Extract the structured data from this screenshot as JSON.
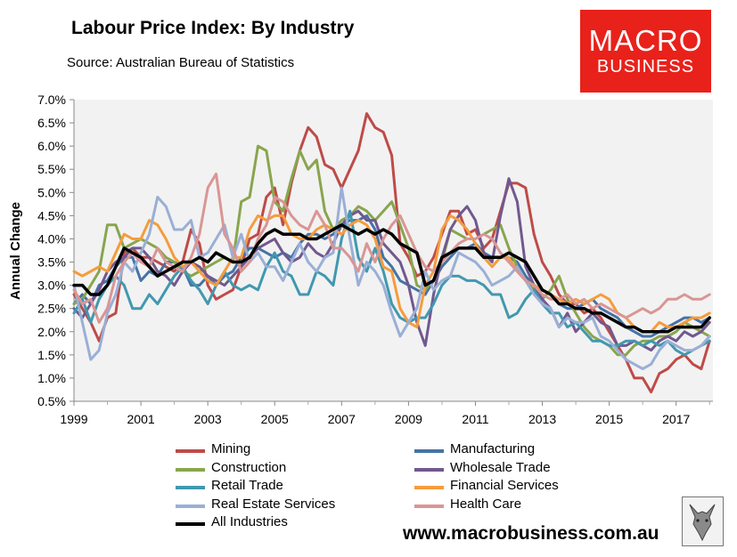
{
  "header": {
    "title": "Labour Price Index: By Industry",
    "source": "Source: Australian Bureau of Statistics"
  },
  "brand": {
    "line1": "MACRO",
    "line2": "BUSINESS",
    "color": "#e8211b"
  },
  "footer": {
    "website": "www.macrobusiness.com.au"
  },
  "chart_data": {
    "type": "line",
    "title": "Labour Price Index: By Industry",
    "xlabel": "",
    "ylabel": "Annual Change",
    "xlim": [
      1999,
      2018.1
    ],
    "ylim": [
      0.5,
      7.0
    ],
    "x_ticks": [
      "1999",
      "2001",
      "2003",
      "2005",
      "2007",
      "2009",
      "2011",
      "2013",
      "2015",
      "2017"
    ],
    "y_ticks": [
      "0.5%",
      "1.0%",
      "1.5%",
      "2.0%",
      "2.5%",
      "3.0%",
      "3.5%",
      "4.0%",
      "4.5%",
      "5.0%",
      "5.5%",
      "6.0%",
      "6.5%",
      "7.0%"
    ],
    "grid": "none",
    "plot_background": "#f2f2f2",
    "legend_position": "bottom",
    "x": [
      1999.0,
      1999.25,
      1999.5,
      1999.75,
      2000.0,
      2000.25,
      2000.5,
      2000.75,
      2001.0,
      2001.25,
      2001.5,
      2001.75,
      2002.0,
      2002.25,
      2002.5,
      2002.75,
      2003.0,
      2003.25,
      2003.5,
      2003.75,
      2004.0,
      2004.25,
      2004.5,
      2004.75,
      2005.0,
      2005.25,
      2005.5,
      2005.75,
      2006.0,
      2006.25,
      2006.5,
      2006.75,
      2007.0,
      2007.25,
      2007.5,
      2007.75,
      2008.0,
      2008.25,
      2008.5,
      2008.75,
      2009.0,
      2009.25,
      2009.5,
      2009.75,
      2010.0,
      2010.25,
      2010.5,
      2010.75,
      2011.0,
      2011.25,
      2011.5,
      2011.75,
      2012.0,
      2012.25,
      2012.5,
      2012.75,
      2013.0,
      2013.25,
      2013.5,
      2013.75,
      2014.0,
      2014.25,
      2014.5,
      2014.75,
      2015.0,
      2015.25,
      2015.5,
      2015.75,
      2016.0,
      2016.25,
      2016.5,
      2016.75,
      2017.0,
      2017.25,
      2017.5,
      2017.75,
      2018.0
    ],
    "series": [
      {
        "name": "Mining",
        "color": "#be4b48",
        "values": [
          2.8,
          2.5,
          2.2,
          1.8,
          2.3,
          2.4,
          3.7,
          3.8,
          3.6,
          3.6,
          3.5,
          3.4,
          3.3,
          3.5,
          4.2,
          3.9,
          3.0,
          2.7,
          2.8,
          2.9,
          3.4,
          4.0,
          4.1,
          4.9,
          5.1,
          4.3,
          5.2,
          5.9,
          6.4,
          6.2,
          5.6,
          5.5,
          5.1,
          5.5,
          5.9,
          6.7,
          6.4,
          6.3,
          5.8,
          3.9,
          3.6,
          3.2,
          3.3,
          3.6,
          4.1,
          4.6,
          4.6,
          4.1,
          4.2,
          3.8,
          4.0,
          4.6,
          5.2,
          5.2,
          5.1,
          4.1,
          3.5,
          3.2,
          2.8,
          2.6,
          2.6,
          2.4,
          2.5,
          2.3,
          2.0,
          1.7,
          1.4,
          1.0,
          1.0,
          0.7,
          1.1,
          1.2,
          1.4,
          1.5,
          1.3,
          1.2,
          1.8
        ]
      },
      {
        "name": "Manufacturing",
        "color": "#4573a7",
        "values": [
          2.6,
          2.8,
          2.6,
          3.0,
          3.1,
          3.4,
          3.6,
          3.6,
          3.1,
          3.3,
          3.2,
          3.5,
          3.5,
          3.4,
          3.0,
          3.0,
          3.2,
          3.0,
          3.2,
          3.3,
          3.6,
          3.8,
          3.8,
          3.7,
          3.6,
          3.7,
          3.6,
          3.9,
          4.1,
          4.1,
          4.0,
          4.1,
          4.3,
          4.4,
          4.4,
          4.5,
          4.2,
          3.6,
          3.4,
          3.1,
          3.0,
          2.9,
          2.8,
          3.1,
          3.4,
          3.6,
          3.8,
          3.8,
          3.9,
          3.7,
          3.6,
          3.6,
          3.6,
          3.5,
          3.2,
          3.0,
          2.9,
          2.8,
          2.6,
          2.5,
          2.5,
          2.6,
          2.7,
          2.5,
          2.4,
          2.3,
          2.1,
          2.0,
          1.9,
          1.9,
          2.0,
          2.1,
          2.2,
          2.3,
          2.3,
          2.2,
          2.3
        ]
      },
      {
        "name": "Construction",
        "color": "#89a54e",
        "values": [
          2.6,
          2.7,
          3.0,
          3.3,
          4.3,
          4.3,
          3.8,
          3.9,
          4.0,
          3.9,
          3.8,
          3.6,
          3.5,
          3.3,
          3.2,
          3.3,
          3.4,
          3.5,
          3.6,
          3.5,
          4.8,
          4.9,
          6.0,
          5.9,
          4.8,
          4.6,
          5.3,
          5.9,
          5.5,
          5.7,
          4.6,
          4.2,
          4.4,
          4.5,
          4.7,
          4.6,
          4.4,
          4.6,
          4.8,
          4.3,
          3.8,
          3.0,
          2.9,
          3.1,
          3.5,
          4.2,
          4.1,
          4.0,
          4.0,
          4.1,
          4.2,
          4.3,
          3.8,
          3.4,
          3.1,
          2.9,
          2.7,
          2.9,
          3.2,
          2.7,
          2.4,
          2.1,
          1.9,
          1.8,
          1.7,
          1.5,
          1.5,
          1.7,
          1.8,
          1.8,
          1.9,
          1.9,
          2.0,
          2.2,
          2.1,
          2.0,
          1.9
        ]
      },
      {
        "name": "Wholesale Trade",
        "color": "#71588f",
        "values": [
          2.5,
          2.3,
          2.6,
          2.9,
          3.3,
          3.5,
          3.6,
          3.8,
          3.8,
          3.6,
          3.3,
          3.2,
          3.0,
          3.3,
          3.5,
          3.4,
          3.2,
          3.1,
          3.0,
          3.2,
          3.4,
          3.6,
          3.8,
          3.9,
          4.0,
          3.7,
          3.5,
          3.6,
          3.9,
          3.7,
          3.6,
          3.9,
          4.3,
          4.5,
          4.6,
          4.4,
          4.4,
          3.9,
          3.7,
          3.5,
          3.0,
          2.2,
          1.7,
          2.8,
          3.6,
          4.2,
          4.5,
          4.7,
          4.4,
          3.7,
          3.5,
          4.5,
          5.3,
          4.8,
          3.4,
          3.0,
          2.7,
          2.5,
          2.1,
          2.4,
          2.0,
          2.2,
          2.4,
          2.2,
          2.1,
          1.7,
          1.7,
          1.8,
          1.7,
          1.6,
          1.8,
          1.9,
          1.8,
          2.0,
          1.9,
          2.0,
          2.2
        ]
      },
      {
        "name": "Retail Trade",
        "color": "#4198af",
        "values": [
          2.4,
          2.7,
          2.2,
          2.7,
          3.0,
          3.2,
          3.0,
          2.5,
          2.5,
          2.8,
          2.6,
          2.9,
          3.2,
          3.4,
          3.1,
          2.9,
          2.6,
          3.0,
          3.3,
          3.0,
          2.9,
          3.0,
          2.9,
          3.4,
          3.7,
          3.3,
          3.2,
          2.8,
          2.8,
          3.3,
          3.2,
          3.0,
          4.0,
          4.6,
          3.6,
          3.3,
          3.8,
          3.3,
          2.6,
          2.3,
          2.2,
          2.3,
          2.3,
          2.6,
          3.0,
          3.2,
          3.2,
          3.1,
          3.1,
          3.0,
          2.8,
          2.8,
          2.3,
          2.4,
          2.7,
          2.9,
          2.6,
          2.4,
          2.4,
          2.1,
          2.2,
          2.0,
          1.8,
          1.8,
          1.7,
          1.7,
          1.8,
          1.8,
          1.7,
          1.8,
          1.7,
          1.8,
          1.6,
          1.5,
          1.6,
          1.7,
          1.8
        ]
      },
      {
        "name": "Financial Services",
        "color": "#f59c3c",
        "values": [
          3.3,
          3.2,
          3.3,
          3.4,
          3.3,
          3.7,
          4.1,
          4.0,
          4.0,
          4.4,
          4.3,
          4.0,
          3.6,
          3.4,
          3.5,
          3.3,
          3.1,
          3.0,
          3.3,
          3.6,
          3.6,
          4.2,
          4.5,
          4.4,
          4.5,
          4.5,
          4.1,
          4.0,
          4.0,
          4.2,
          4.3,
          4.2,
          4.1,
          4.3,
          4.4,
          4.3,
          4.0,
          3.4,
          3.3,
          2.5,
          2.2,
          2.1,
          3.0,
          3.3,
          4.2,
          4.5,
          4.4,
          4.2,
          3.9,
          3.6,
          3.4,
          3.6,
          3.6,
          3.3,
          3.1,
          3.0,
          2.9,
          2.8,
          2.7,
          2.6,
          2.7,
          2.6,
          2.7,
          2.8,
          2.7,
          2.4,
          2.3,
          2.1,
          2.0,
          2.0,
          2.2,
          2.1,
          2.1,
          2.2,
          2.3,
          2.3,
          2.4
        ]
      },
      {
        "name": "Real Estate Services",
        "color": "#9aafd6",
        "values": [
          3.0,
          2.2,
          1.4,
          1.6,
          2.4,
          2.8,
          3.5,
          3.3,
          3.7,
          4.1,
          4.9,
          4.7,
          4.2,
          4.2,
          4.4,
          3.6,
          3.7,
          4.0,
          4.3,
          3.6,
          4.1,
          3.5,
          3.7,
          3.4,
          3.4,
          3.1,
          3.5,
          3.9,
          3.5,
          3.3,
          3.6,
          3.7,
          5.1,
          4.0,
          3.0,
          3.5,
          3.3,
          3.0,
          2.4,
          1.9,
          2.2,
          2.5,
          3.3,
          2.9,
          3.1,
          3.2,
          3.7,
          3.6,
          3.5,
          3.3,
          3.0,
          3.1,
          3.2,
          3.4,
          3.1,
          2.8,
          2.6,
          2.5,
          2.1,
          2.3,
          2.2,
          2.2,
          2.3,
          1.9,
          1.8,
          1.6,
          1.4,
          1.3,
          1.2,
          1.3,
          1.6,
          1.8,
          1.7,
          1.6,
          1.6,
          1.7,
          1.9
        ]
      },
      {
        "name": "Health Care",
        "color": "#d99694",
        "values": [
          2.9,
          2.6,
          2.7,
          2.2,
          2.5,
          3.2,
          3.5,
          3.7,
          3.5,
          3.4,
          3.8,
          3.5,
          3.4,
          3.3,
          3.6,
          4.1,
          5.1,
          5.4,
          4.1,
          3.8,
          3.3,
          3.5,
          4.0,
          4.3,
          4.9,
          4.8,
          4.5,
          4.3,
          4.2,
          4.6,
          4.3,
          3.8,
          3.8,
          3.6,
          3.3,
          3.9,
          3.5,
          4.0,
          4.3,
          4.5,
          4.1,
          3.7,
          3.4,
          3.3,
          3.5,
          3.7,
          3.9,
          4.0,
          4.0,
          4.1,
          4.0,
          3.7,
          3.5,
          3.3,
          3.1,
          3.0,
          2.8,
          2.7,
          2.7,
          2.8,
          2.6,
          2.7,
          2.5,
          2.6,
          2.5,
          2.4,
          2.3,
          2.4,
          2.5,
          2.4,
          2.5,
          2.7,
          2.7,
          2.8,
          2.7,
          2.7,
          2.8
        ]
      },
      {
        "name": "All Industries",
        "color": "#000000",
        "values": [
          3.0,
          3.0,
          2.8,
          2.8,
          3.0,
          3.4,
          3.8,
          3.7,
          3.6,
          3.4,
          3.2,
          3.3,
          3.4,
          3.5,
          3.5,
          3.6,
          3.5,
          3.7,
          3.6,
          3.5,
          3.5,
          3.6,
          3.9,
          4.1,
          4.2,
          4.1,
          4.1,
          4.1,
          4.0,
          4.0,
          4.1,
          4.2,
          4.3,
          4.2,
          4.1,
          4.2,
          4.1,
          4.2,
          4.1,
          3.9,
          3.8,
          3.7,
          3.0,
          3.1,
          3.6,
          3.7,
          3.8,
          3.8,
          3.8,
          3.6,
          3.6,
          3.6,
          3.7,
          3.6,
          3.5,
          3.2,
          2.9,
          2.8,
          2.6,
          2.6,
          2.5,
          2.5,
          2.4,
          2.4,
          2.3,
          2.2,
          2.1,
          2.1,
          2.0,
          2.0,
          2.0,
          2.0,
          2.1,
          2.1,
          2.1,
          2.1,
          2.3
        ]
      }
    ]
  }
}
